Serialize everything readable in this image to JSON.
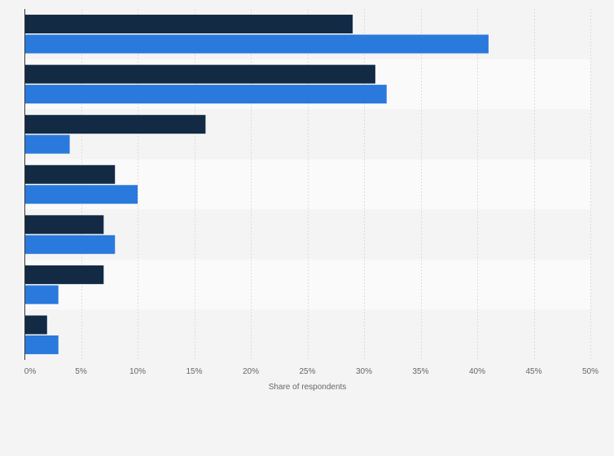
{
  "chart_data": {
    "type": "bar",
    "orientation": "horizontal",
    "categories": [
      "",
      "",
      "",
      "",
      "",
      "",
      ""
    ],
    "series": [
      {
        "values": [
          29,
          31,
          16,
          8,
          7,
          7,
          2
        ],
        "color": "#132a44"
      },
      {
        "values": [
          41,
          32,
          4,
          10,
          8,
          3,
          3
        ],
        "color": "#2a79dd"
      }
    ],
    "xlabel": "Share of respondents",
    "ylabel": "",
    "xlim": [
      0,
      50
    ],
    "xticks": [
      0,
      5,
      10,
      15,
      20,
      25,
      30,
      35,
      40,
      45,
      50
    ],
    "tick_labels": [
      "0%",
      "5%",
      "10%",
      "15%",
      "20%",
      "25%",
      "30%",
      "35%",
      "40%",
      "45%",
      "50%"
    ],
    "grid": true,
    "grid_style": "dashed vertical",
    "legend": "none"
  },
  "colors": {
    "background": "#f4f4f4",
    "band_light": "#fafafa",
    "band_dark": "#f4f4f4",
    "grid": "#dcdcdc",
    "axis": "#3a3a3a",
    "text": "#666666"
  }
}
